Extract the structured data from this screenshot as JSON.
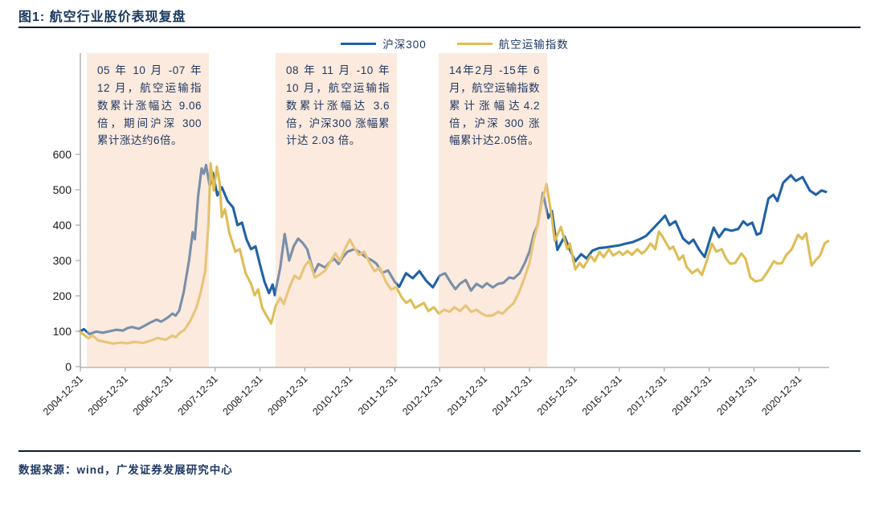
{
  "title": "图1: 航空行业股价表现复盘",
  "source": "数据来源：wind，广发证券发展研究中心",
  "legend": [
    {
      "label": "沪深300",
      "color": "#2062a5"
    },
    {
      "label": "航空运输指数",
      "color": "#dfbd55"
    }
  ],
  "colors": {
    "hs300_line": "#2062a5",
    "aviation_line": "#dfbd55",
    "annotation_fill": "rgba(246,205,175,0.42)",
    "axis": "#a6a6a6",
    "tick_text": "#1a1a1a",
    "title_text": "#17375e"
  },
  "chart_data": {
    "type": "line",
    "title": "航空行业股价表现复盘",
    "xlabel": "",
    "ylabel": "",
    "ylim": [
      0,
      600
    ],
    "y_ticks": [
      0,
      100,
      200,
      300,
      400,
      500,
      600
    ],
    "x_tick_labels": [
      "2004-12-31",
      "2005-12-31",
      "2006-12-31",
      "2007-12-31",
      "2008-12-31",
      "2009-12-31",
      "2010-12-31",
      "2011-12-31",
      "2012-12-31",
      "2013-12-31",
      "2014-12-31",
      "2015-12-31",
      "2016-12-31",
      "2017-12-31",
      "2018-12-31",
      "2019-12-31",
      "2020-12-31"
    ],
    "grid": false,
    "legend_position": "top-center",
    "annotations": [
      {
        "text": "05 年 10 月 -07 年 12 月，航空运输指数累计涨幅达 9.06倍，期间沪深 300 累计涨达约6倍。",
        "t_start": 0.14,
        "t_end": 2.86
      },
      {
        "text": "08 年 11 月 -10 年 10 月，航空运输指数累计涨幅达 3.6倍，沪深300 涨幅累计达 2.03 倍。",
        "t_start": 4.35,
        "t_end": 7.05
      },
      {
        "text": "14年2月 -15年 6月，航空运输指数累计涨幅达4.2倍，沪深 300 涨幅累计达2.05倍。",
        "t_start": 7.98,
        "t_end": 10.39
      }
    ],
    "series": [
      {
        "name": "沪深300",
        "color": "#2062a5",
        "points": [
          [
            0,
            100
          ],
          [
            0.08,
            106
          ],
          [
            0.2,
            92
          ],
          [
            0.35,
            99
          ],
          [
            0.5,
            96
          ],
          [
            0.65,
            100
          ],
          [
            0.8,
            104
          ],
          [
            0.95,
            102
          ],
          [
            1.05,
            109
          ],
          [
            1.15,
            112
          ],
          [
            1.3,
            107
          ],
          [
            1.45,
            117
          ],
          [
            1.55,
            124
          ],
          [
            1.7,
            133
          ],
          [
            1.8,
            127
          ],
          [
            1.95,
            139
          ],
          [
            2.05,
            150
          ],
          [
            2.12,
            144
          ],
          [
            2.2,
            158
          ],
          [
            2.3,
            210
          ],
          [
            2.42,
            300
          ],
          [
            2.5,
            380
          ],
          [
            2.55,
            360
          ],
          [
            2.62,
            480
          ],
          [
            2.7,
            560
          ],
          [
            2.75,
            545
          ],
          [
            2.8,
            570
          ],
          [
            2.88,
            510
          ],
          [
            2.95,
            548
          ],
          [
            3.05,
            484
          ],
          [
            3.15,
            507
          ],
          [
            3.28,
            468
          ],
          [
            3.4,
            450
          ],
          [
            3.5,
            400
          ],
          [
            3.6,
            407
          ],
          [
            3.7,
            360
          ],
          [
            3.8,
            332
          ],
          [
            3.9,
            340
          ],
          [
            4.0,
            288
          ],
          [
            4.1,
            240
          ],
          [
            4.2,
            208
          ],
          [
            4.28,
            232
          ],
          [
            4.33,
            202
          ],
          [
            4.45,
            280
          ],
          [
            4.55,
            375
          ],
          [
            4.65,
            300
          ],
          [
            4.75,
            340
          ],
          [
            4.85,
            362
          ],
          [
            4.95,
            350
          ],
          [
            5.05,
            332
          ],
          [
            5.2,
            264
          ],
          [
            5.3,
            290
          ],
          [
            5.45,
            280
          ],
          [
            5.55,
            295
          ],
          [
            5.65,
            305
          ],
          [
            5.75,
            290
          ],
          [
            5.85,
            310
          ],
          [
            5.95,
            325
          ],
          [
            6.1,
            332
          ],
          [
            6.2,
            325
          ],
          [
            6.35,
            310
          ],
          [
            6.5,
            300
          ],
          [
            6.6,
            290
          ],
          [
            6.72,
            265
          ],
          [
            6.85,
            272
          ],
          [
            7.0,
            240
          ],
          [
            7.1,
            226
          ],
          [
            7.25,
            264
          ],
          [
            7.4,
            250
          ],
          [
            7.55,
            270
          ],
          [
            7.7,
            243
          ],
          [
            7.85,
            224
          ],
          [
            8.0,
            257
          ],
          [
            8.12,
            264
          ],
          [
            8.25,
            237
          ],
          [
            8.35,
            219
          ],
          [
            8.45,
            234
          ],
          [
            8.58,
            245
          ],
          [
            8.7,
            215
          ],
          [
            8.82,
            234
          ],
          [
            8.95,
            224
          ],
          [
            9.05,
            236
          ],
          [
            9.18,
            224
          ],
          [
            9.3,
            234
          ],
          [
            9.42,
            237
          ],
          [
            9.55,
            252
          ],
          [
            9.65,
            249
          ],
          [
            9.78,
            264
          ],
          [
            9.9,
            294
          ],
          [
            10.0,
            326
          ],
          [
            10.1,
            377
          ],
          [
            10.18,
            400
          ],
          [
            10.3,
            491
          ],
          [
            10.42,
            420
          ],
          [
            10.5,
            440
          ],
          [
            10.62,
            330
          ],
          [
            10.78,
            368
          ],
          [
            10.9,
            330
          ],
          [
            11.02,
            298
          ],
          [
            11.15,
            318
          ],
          [
            11.27,
            306
          ],
          [
            11.4,
            328
          ],
          [
            11.55,
            335
          ],
          [
            11.7,
            337
          ],
          [
            11.85,
            340
          ],
          [
            12.0,
            343
          ],
          [
            12.15,
            348
          ],
          [
            12.3,
            352
          ],
          [
            12.45,
            360
          ],
          [
            12.6,
            370
          ],
          [
            12.75,
            390
          ],
          [
            12.9,
            410
          ],
          [
            13.02,
            427
          ],
          [
            13.12,
            400
          ],
          [
            13.25,
            411
          ],
          [
            13.42,
            362
          ],
          [
            13.55,
            348
          ],
          [
            13.65,
            359
          ],
          [
            13.78,
            330
          ],
          [
            13.9,
            310
          ],
          [
            14.0,
            352
          ],
          [
            14.1,
            393
          ],
          [
            14.22,
            366
          ],
          [
            14.35,
            389
          ],
          [
            14.5,
            384
          ],
          [
            14.65,
            389
          ],
          [
            14.76,
            411
          ],
          [
            14.85,
            400
          ],
          [
            14.96,
            407
          ],
          [
            15.06,
            373
          ],
          [
            15.15,
            378
          ],
          [
            15.32,
            475
          ],
          [
            15.43,
            486
          ],
          [
            15.52,
            468
          ],
          [
            15.65,
            520
          ],
          [
            15.82,
            541
          ],
          [
            15.93,
            525
          ],
          [
            16.08,
            536
          ],
          [
            16.24,
            498
          ],
          [
            16.38,
            486
          ],
          [
            16.5,
            498
          ],
          [
            16.6,
            494
          ]
        ]
      },
      {
        "name": "航空运输指数",
        "color": "#dfbd55",
        "points": [
          [
            0,
            98
          ],
          [
            0.1,
            88
          ],
          [
            0.18,
            80
          ],
          [
            0.27,
            88
          ],
          [
            0.4,
            74
          ],
          [
            0.55,
            70
          ],
          [
            0.73,
            65
          ],
          [
            0.9,
            68
          ],
          [
            1.05,
            66
          ],
          [
            1.2,
            70
          ],
          [
            1.4,
            67
          ],
          [
            1.55,
            73
          ],
          [
            1.72,
            81
          ],
          [
            1.9,
            76
          ],
          [
            2.05,
            88
          ],
          [
            2.12,
            83
          ],
          [
            2.22,
            96
          ],
          [
            2.32,
            104
          ],
          [
            2.45,
            130
          ],
          [
            2.58,
            165
          ],
          [
            2.68,
            210
          ],
          [
            2.78,
            270
          ],
          [
            2.85,
            400
          ],
          [
            2.9,
            575
          ],
          [
            2.97,
            498
          ],
          [
            3.04,
            565
          ],
          [
            3.1,
            520
          ],
          [
            3.15,
            423
          ],
          [
            3.22,
            445
          ],
          [
            3.32,
            377
          ],
          [
            3.45,
            325
          ],
          [
            3.55,
            332
          ],
          [
            3.68,
            264
          ],
          [
            3.8,
            234
          ],
          [
            3.88,
            202
          ],
          [
            3.96,
            218
          ],
          [
            4.05,
            166
          ],
          [
            4.15,
            143
          ],
          [
            4.25,
            122
          ],
          [
            4.35,
            173
          ],
          [
            4.45,
            195
          ],
          [
            4.53,
            177
          ],
          [
            4.65,
            222
          ],
          [
            4.77,
            257
          ],
          [
            4.88,
            248
          ],
          [
            5.0,
            285
          ],
          [
            5.1,
            300
          ],
          [
            5.22,
            252
          ],
          [
            5.35,
            262
          ],
          [
            5.45,
            272
          ],
          [
            5.55,
            293
          ],
          [
            5.68,
            320
          ],
          [
            5.78,
            298
          ],
          [
            5.9,
            336
          ],
          [
            6.0,
            359
          ],
          [
            6.1,
            336
          ],
          [
            6.2,
            316
          ],
          [
            6.32,
            325
          ],
          [
            6.45,
            291
          ],
          [
            6.55,
            270
          ],
          [
            6.67,
            280
          ],
          [
            6.8,
            241
          ],
          [
            6.92,
            218
          ],
          [
            7.03,
            225
          ],
          [
            7.16,
            195
          ],
          [
            7.26,
            180
          ],
          [
            7.35,
            189
          ],
          [
            7.45,
            166
          ],
          [
            7.55,
            173
          ],
          [
            7.65,
            180
          ],
          [
            7.75,
            157
          ],
          [
            7.87,
            168
          ],
          [
            7.98,
            150
          ],
          [
            8.1,
            161
          ],
          [
            8.22,
            155
          ],
          [
            8.33,
            168
          ],
          [
            8.45,
            157
          ],
          [
            8.58,
            173
          ],
          [
            8.7,
            155
          ],
          [
            8.82,
            161
          ],
          [
            8.94,
            150
          ],
          [
            9.05,
            143
          ],
          [
            9.18,
            145
          ],
          [
            9.3,
            155
          ],
          [
            9.4,
            150
          ],
          [
            9.53,
            166
          ],
          [
            9.65,
            180
          ],
          [
            9.77,
            211
          ],
          [
            9.88,
            248
          ],
          [
            10.0,
            293
          ],
          [
            10.1,
            361
          ],
          [
            10.18,
            400
          ],
          [
            10.28,
            468
          ],
          [
            10.38,
            516
          ],
          [
            10.5,
            420
          ],
          [
            10.56,
            355
          ],
          [
            10.7,
            395
          ],
          [
            10.84,
            332
          ],
          [
            10.9,
            348
          ],
          [
            11.02,
            275
          ],
          [
            11.12,
            293
          ],
          [
            11.2,
            280
          ],
          [
            11.36,
            314
          ],
          [
            11.45,
            298
          ],
          [
            11.56,
            325
          ],
          [
            11.65,
            309
          ],
          [
            11.77,
            332
          ],
          [
            11.86,
            314
          ],
          [
            12.0,
            325
          ],
          [
            12.08,
            316
          ],
          [
            12.18,
            327
          ],
          [
            12.28,
            316
          ],
          [
            12.4,
            332
          ],
          [
            12.5,
            320
          ],
          [
            12.58,
            327
          ],
          [
            12.7,
            348
          ],
          [
            12.8,
            332
          ],
          [
            12.88,
            382
          ],
          [
            12.95,
            370
          ],
          [
            13.05,
            348
          ],
          [
            13.12,
            332
          ],
          [
            13.2,
            339
          ],
          [
            13.33,
            302
          ],
          [
            13.42,
            314
          ],
          [
            13.5,
            282
          ],
          [
            13.62,
            264
          ],
          [
            13.74,
            275
          ],
          [
            13.84,
            259
          ],
          [
            13.95,
            300
          ],
          [
            14.06,
            348
          ],
          [
            14.16,
            325
          ],
          [
            14.28,
            332
          ],
          [
            14.38,
            305
          ],
          [
            14.47,
            291
          ],
          [
            14.58,
            293
          ],
          [
            14.72,
            320
          ],
          [
            14.81,
            305
          ],
          [
            14.92,
            252
          ],
          [
            15.03,
            241
          ],
          [
            15.17,
            245
          ],
          [
            15.3,
            268
          ],
          [
            15.44,
            298
          ],
          [
            15.53,
            291
          ],
          [
            15.62,
            293
          ],
          [
            15.72,
            316
          ],
          [
            15.84,
            332
          ],
          [
            15.98,
            373
          ],
          [
            16.07,
            361
          ],
          [
            16.16,
            377
          ],
          [
            16.28,
            286
          ],
          [
            16.38,
            302
          ],
          [
            16.47,
            314
          ],
          [
            16.57,
            348
          ],
          [
            16.65,
            355
          ]
        ]
      }
    ]
  }
}
